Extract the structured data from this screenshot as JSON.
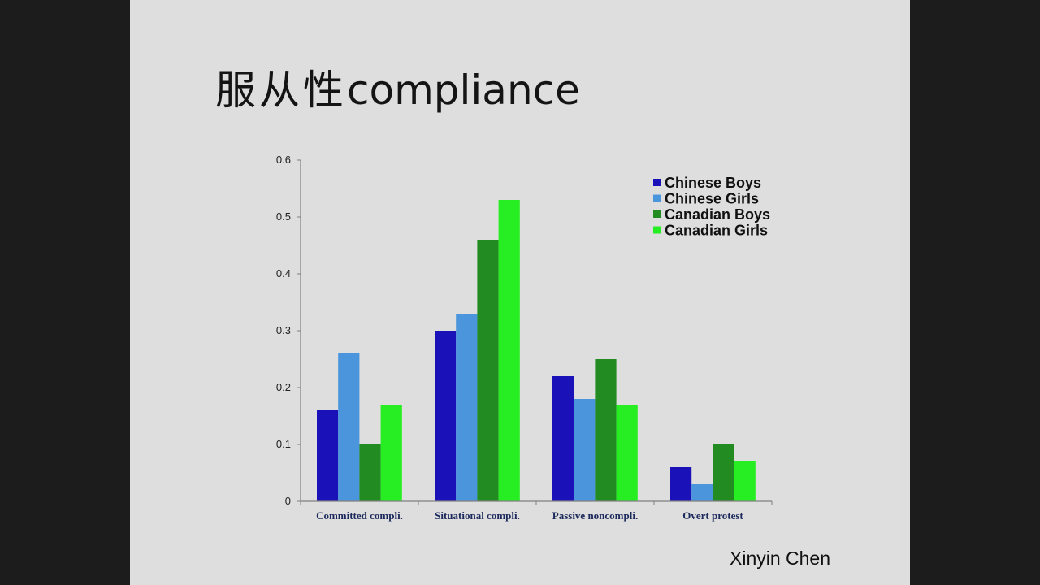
{
  "slide": {
    "title_cjk": "服从性",
    "title_en": "compliance",
    "author": "Xinyin Chen"
  },
  "colors": {
    "background": "#dedede",
    "letterbox": "#1c1c1c"
  },
  "chart_data": {
    "type": "bar",
    "title": "",
    "xlabel": "",
    "ylabel": "",
    "categories": [
      "Committed compli.",
      "Situational compli.",
      "Passive noncompli.",
      "Overt protest"
    ],
    "ylim": [
      0,
      0.6
    ],
    "yticks": [
      0,
      0.1,
      0.2,
      0.3,
      0.4,
      0.5,
      0.6
    ],
    "ytick_labels": [
      "0",
      "0.1",
      "0.2",
      "0.3",
      "0.4",
      "0.5",
      "0.6"
    ],
    "grid": false,
    "legend_position": "top-right",
    "series": [
      {
        "name": "Chinese Boys",
        "color": "#1a12b8",
        "values": [
          0.16,
          0.3,
          0.22,
          0.06
        ]
      },
      {
        "name": "Chinese Girls",
        "color": "#4a95dc",
        "values": [
          0.26,
          0.33,
          0.18,
          0.03
        ]
      },
      {
        "name": "Canadian Boys",
        "color": "#228b22",
        "values": [
          0.1,
          0.46,
          0.25,
          0.1
        ]
      },
      {
        "name": "Canadian Girls",
        "color": "#27ee22",
        "values": [
          0.17,
          0.53,
          0.17,
          0.07
        ]
      }
    ]
  }
}
